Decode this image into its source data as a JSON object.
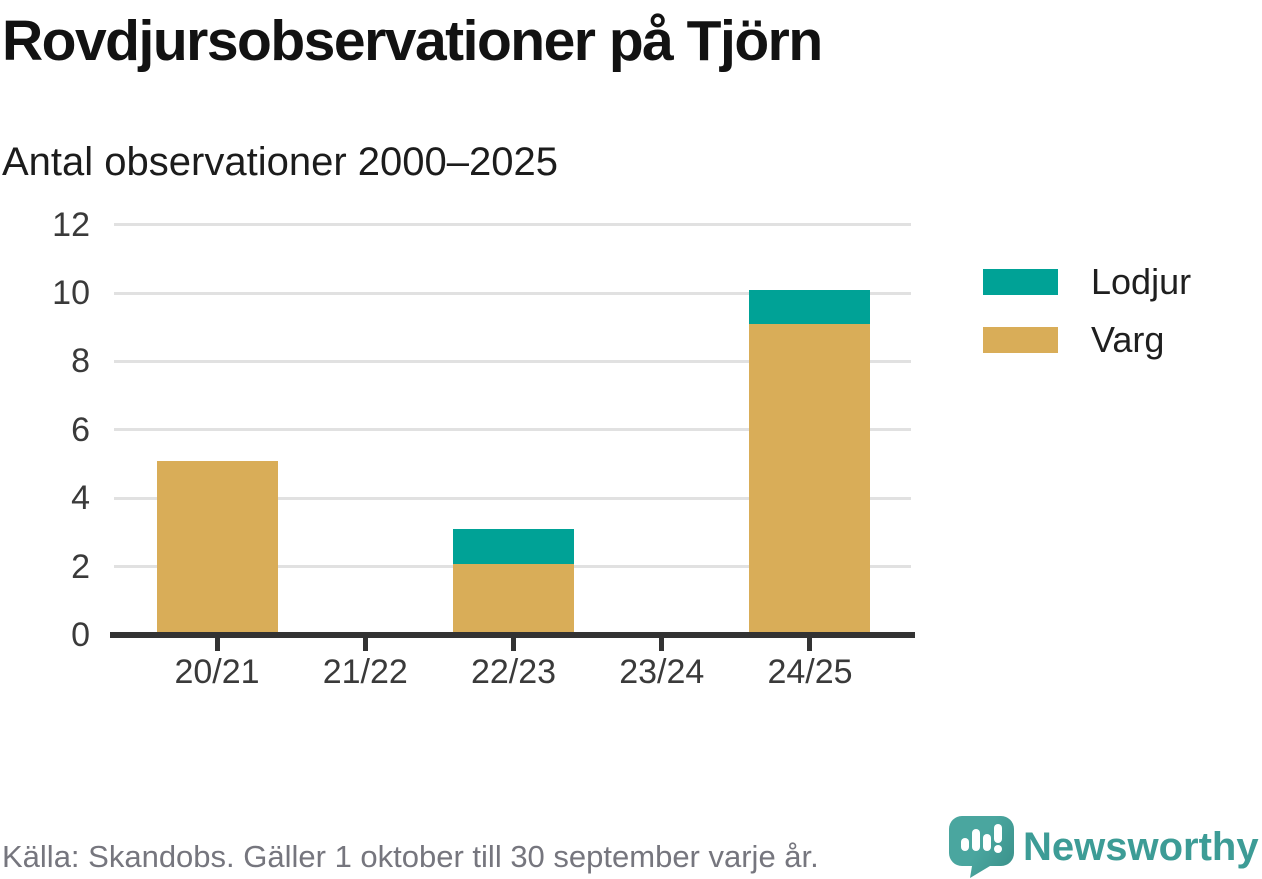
{
  "header": {
    "title": "Rovdjursobservationer på Tjörn",
    "subtitle": "Antal observationer 2000–2025"
  },
  "chart_data": {
    "type": "bar",
    "stacked": true,
    "categories": [
      "20/21",
      "21/22",
      "22/23",
      "23/24",
      "24/25"
    ],
    "series": [
      {
        "name": "Lodjur",
        "color": "#00a296",
        "values": [
          0,
          0,
          1,
          0,
          1
        ]
      },
      {
        "name": "Varg",
        "color": "#d9ad58",
        "values": [
          5,
          0,
          2,
          0,
          9
        ]
      }
    ],
    "totals": [
      5,
      0,
      3,
      0,
      10
    ],
    "title": "Rovdjursobservationer på Tjörn",
    "subtitle": "Antal observationer 2000–2025",
    "xlabel": "",
    "ylabel": "",
    "ylim": [
      0,
      12
    ],
    "yticks": [
      0,
      2,
      4,
      6,
      8,
      10,
      12
    ],
    "grid": true,
    "legend_position": "right"
  },
  "legend": {
    "items": [
      {
        "label": "Lodjur",
        "color": "#00a296"
      },
      {
        "label": "Varg",
        "color": "#d9ad58"
      }
    ]
  },
  "footer": {
    "source": "Källa: Skandobs. Gäller 1 oktober till 30 september varje år.",
    "brand": "Newsworthy"
  },
  "colors": {
    "axis": "#333333",
    "grid": "#e1e1e1",
    "tick_label": "#3a3a3a",
    "muted_text": "#76767e",
    "brand_teal": "#3d9c96",
    "logo_bubble": "#4aa69f",
    "logo_bubble_shade": "#3e968f"
  }
}
